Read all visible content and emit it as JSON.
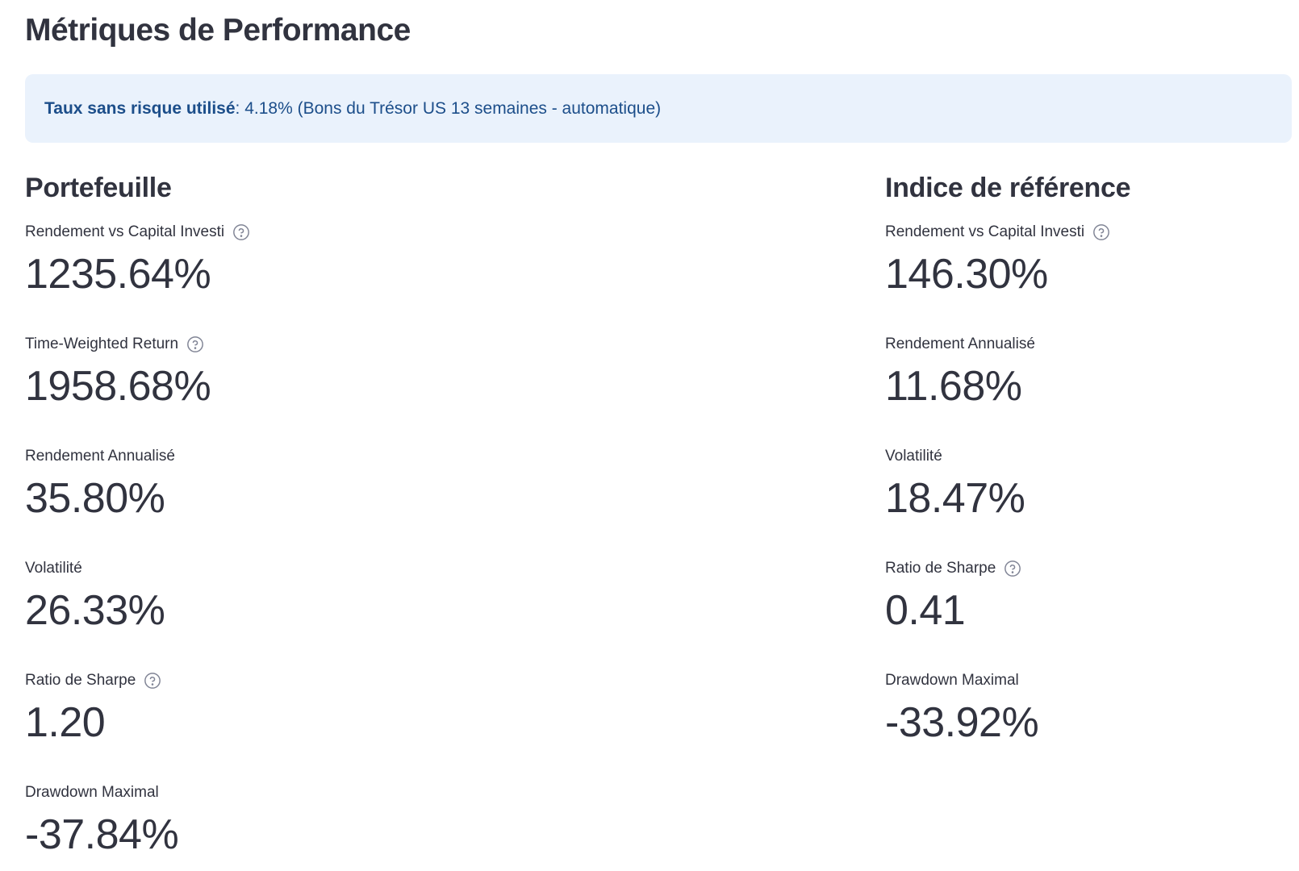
{
  "page": {
    "title": "Métriques de Performance"
  },
  "info": {
    "label": "Taux sans risque utilisé",
    "text": ": 4.18% (Bons du Trésor US 13 semaines - automatique)"
  },
  "portfolio": {
    "title": "Portefeuille",
    "metrics": [
      {
        "label": "Rendement vs Capital Investi",
        "value": "1235.64%",
        "help": true
      },
      {
        "label": "Time-Weighted Return",
        "value": "1958.68%",
        "help": true
      },
      {
        "label": "Rendement Annualisé",
        "value": "35.80%",
        "help": false
      },
      {
        "label": "Volatilité",
        "value": "26.33%",
        "help": false
      },
      {
        "label": "Ratio de Sharpe",
        "value": "1.20",
        "help": true
      },
      {
        "label": "Drawdown Maximal",
        "value": "-37.84%",
        "help": false
      }
    ]
  },
  "benchmark": {
    "title": "Indice de référence",
    "metrics": [
      {
        "label": "Rendement vs Capital Investi",
        "value": "146.30%",
        "help": true
      },
      {
        "label": "Rendement Annualisé",
        "value": "11.68%",
        "help": false
      },
      {
        "label": "Volatilité",
        "value": "18.47%",
        "help": false
      },
      {
        "label": "Ratio de Sharpe",
        "value": "0.41",
        "help": true
      },
      {
        "label": "Drawdown Maximal",
        "value": "-33.92%",
        "help": false
      }
    ]
  },
  "colors": {
    "text": "#31333f",
    "info_bg": "#eaf2fc",
    "info_text": "#1c4e8a",
    "help_icon": "#808495"
  },
  "icons": {
    "help": "question-circle-icon"
  }
}
